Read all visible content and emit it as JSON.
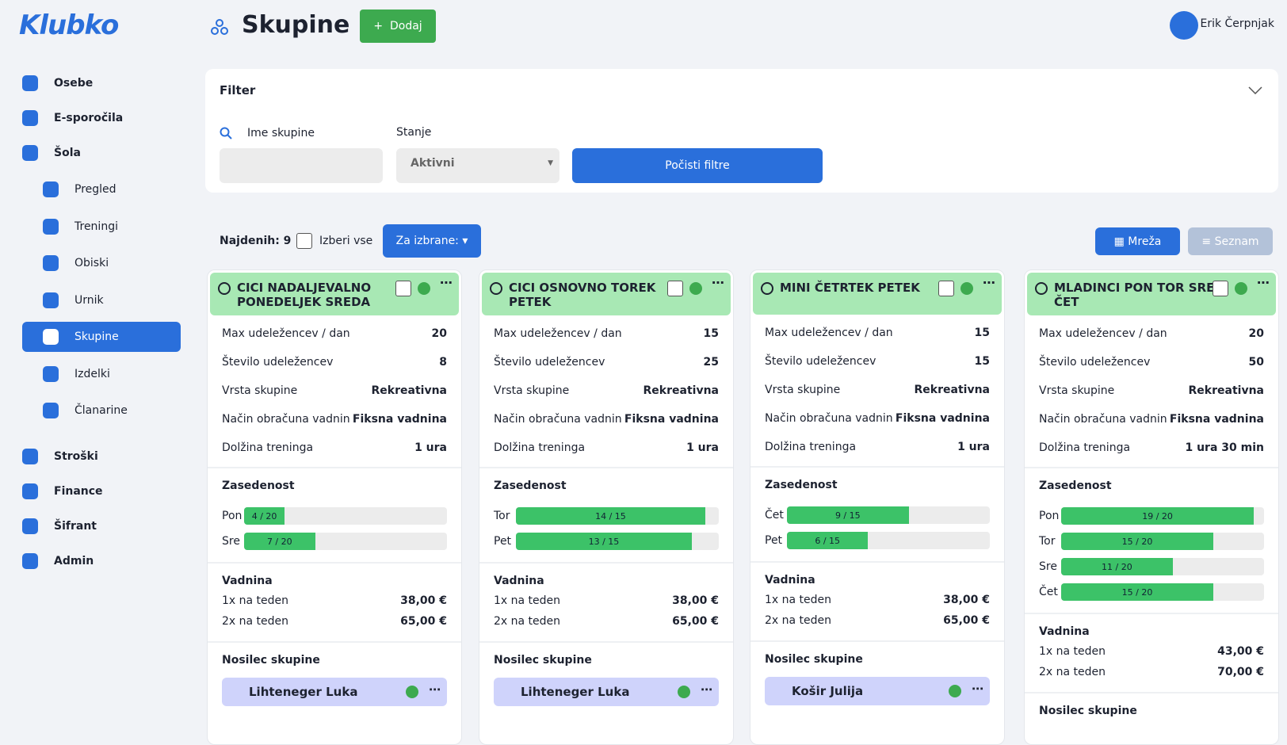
{
  "header": {
    "logo": "Klubko",
    "title": "Skupine",
    "add_button": "Dodaj",
    "user": "Erik Čerpnjak"
  },
  "sidebar": {
    "items": [
      {
        "label": "Osebe"
      },
      {
        "label": "E-sporočila"
      },
      {
        "label": "Šola",
        "children": [
          {
            "label": "Pregled"
          },
          {
            "label": "Treningi"
          },
          {
            "label": "Obiski"
          },
          {
            "label": "Urnik"
          },
          {
            "label": "Skupine",
            "active": true
          },
          {
            "label": "Izdelki"
          },
          {
            "label": "Članarine"
          }
        ]
      },
      {
        "label": "Stroški"
      },
      {
        "label": "Finance"
      },
      {
        "label": "Šifrant"
      },
      {
        "label": "Admin"
      }
    ]
  },
  "filter": {
    "title": "Filter",
    "name_label": "Ime skupine",
    "state_label": "Stanje",
    "state_value": "Aktivni",
    "clear_button": "Počisti filtre"
  },
  "toolbar": {
    "found": "Najdenih: 9",
    "select_all": "Izberi vse",
    "bulk_button": "Za izbrane:",
    "grid_button": "Mreža",
    "list_button": "Seznam"
  },
  "labels": {
    "occupancy": "Zasedenost",
    "fees": "Vadnina",
    "holder": "Nosilec skupine"
  },
  "cards": [
    {
      "title": "CICI NADALJEVALNO PONEDELJEK SREDA",
      "stats": [
        [
          "Max udeležencev / dan",
          "20"
        ],
        [
          "Število udeležencev",
          "8"
        ],
        [
          "Vrsta skupine",
          "Rekreativna"
        ],
        [
          "Način obračuna vadnin",
          "Fiksna vadnina"
        ],
        [
          "Dolžina treninga",
          "1 ura"
        ]
      ],
      "occupancy": [
        {
          "day": "Pon",
          "taken": 4,
          "max": 20,
          "label": "4 / 20"
        },
        {
          "day": "Sre",
          "taken": 7,
          "max": 20,
          "label": "7 / 20"
        }
      ],
      "fees": [
        [
          "1x na teden",
          "38,00 €"
        ],
        [
          "2x na teden",
          "65,00 €"
        ]
      ],
      "holder": "Lihteneger Luka"
    },
    {
      "title": "CICI OSNOVNO TOREK PETEK",
      "stats": [
        [
          "Max udeležencev / dan",
          "15"
        ],
        [
          "Število udeležencev",
          "25"
        ],
        [
          "Vrsta skupine",
          "Rekreativna"
        ],
        [
          "Način obračuna vadnin",
          "Fiksna vadnina"
        ],
        [
          "Dolžina treninga",
          "1 ura"
        ]
      ],
      "occupancy": [
        {
          "day": "Tor",
          "taken": 14,
          "max": 15,
          "label": "14 / 15"
        },
        {
          "day": "Pet",
          "taken": 13,
          "max": 15,
          "label": "13 / 15"
        }
      ],
      "fees": [
        [
          "1x na teden",
          "38,00 €"
        ],
        [
          "2x na teden",
          "65,00 €"
        ]
      ],
      "holder": "Lihteneger Luka"
    },
    {
      "title": "MINI ČETRTEK PETEK",
      "stats": [
        [
          "Max udeležencev / dan",
          "15"
        ],
        [
          "Število udeležencev",
          "15"
        ],
        [
          "Vrsta skupine",
          "Rekreativna"
        ],
        [
          "Način obračuna vadnin",
          "Fiksna vadnina"
        ],
        [
          "Dolžina treninga",
          "1 ura"
        ]
      ],
      "occupancy": [
        {
          "day": "Čet",
          "taken": 9,
          "max": 15,
          "label": "9 / 15"
        },
        {
          "day": "Pet",
          "taken": 6,
          "max": 15,
          "label": "6 / 15"
        }
      ],
      "fees": [
        [
          "1x na teden",
          "38,00 €"
        ],
        [
          "2x na teden",
          "65,00 €"
        ]
      ],
      "holder": "Košir Julija"
    },
    {
      "title": "MLADINCI PON TOR SRE ČET",
      "stats": [
        [
          "Max udeležencev / dan",
          "20"
        ],
        [
          "Število udeležencev",
          "50"
        ],
        [
          "Vrsta skupine",
          "Rekreativna"
        ],
        [
          "Način obračuna vadnin",
          "Fiksna vadnina"
        ],
        [
          "Dolžina treninga",
          "1 ura 30 min"
        ]
      ],
      "occupancy": [
        {
          "day": "Pon",
          "taken": 19,
          "max": 20,
          "label": "19 / 20"
        },
        {
          "day": "Tor",
          "taken": 15,
          "max": 20,
          "label": "15 / 20"
        },
        {
          "day": "Sre",
          "taken": 11,
          "max": 20,
          "label": "11 / 20"
        },
        {
          "day": "Čet",
          "taken": 15,
          "max": 20,
          "label": "15 / 20"
        }
      ],
      "fees": [
        [
          "1x na teden",
          "43,00 €"
        ],
        [
          "2x na teden",
          "70,00 €"
        ]
      ]
    }
  ]
}
